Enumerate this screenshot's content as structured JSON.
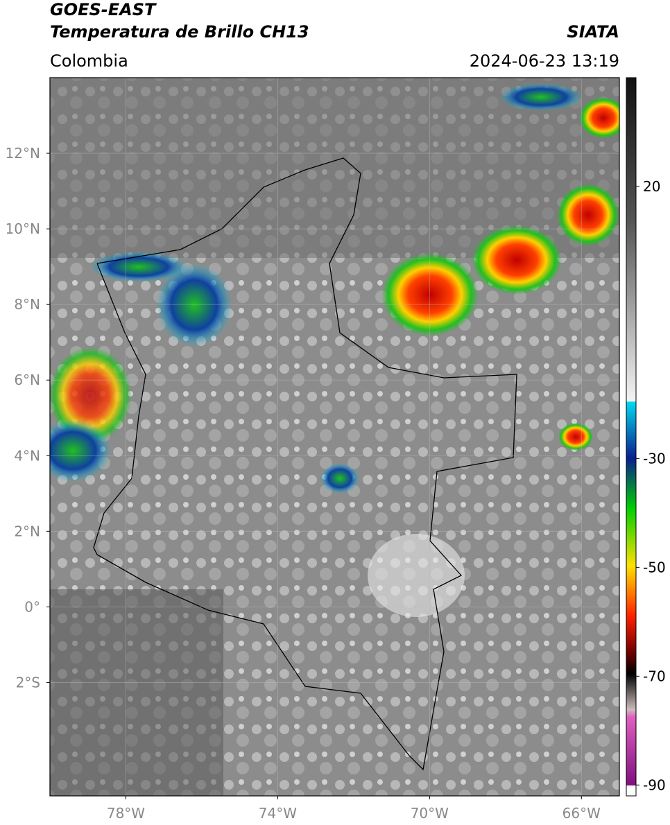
{
  "header": {
    "title": "GOES-EAST",
    "subtitle": "Temperatura de Brillo CH13",
    "source": "SIATA",
    "region": "Colombia",
    "datetime": "2024-06-23 13:19"
  },
  "map": {
    "xlim": [
      -80,
      -65
    ],
    "ylim": [
      -5,
      14
    ],
    "grid": true,
    "xticks": [
      {
        "value": -78,
        "label": "78°W"
      },
      {
        "value": -74,
        "label": "74°W"
      },
      {
        "value": -70,
        "label": "70°W"
      },
      {
        "value": -66,
        "label": "66°W"
      }
    ],
    "yticks": [
      {
        "value": 12,
        "label": "12°N"
      },
      {
        "value": 10,
        "label": "10°N"
      },
      {
        "value": 8,
        "label": "8°N"
      },
      {
        "value": 6,
        "label": "6°N"
      },
      {
        "value": 4,
        "label": "4°N"
      },
      {
        "value": 2,
        "label": "2°N"
      },
      {
        "value": 0,
        "label": "0°"
      },
      {
        "value": -2,
        "label": "2°S"
      }
    ]
  },
  "colorbar": {
    "lim": [
      -92,
      40
    ],
    "ticks": [
      20,
      -30,
      -50,
      -70,
      -90
    ]
  }
}
